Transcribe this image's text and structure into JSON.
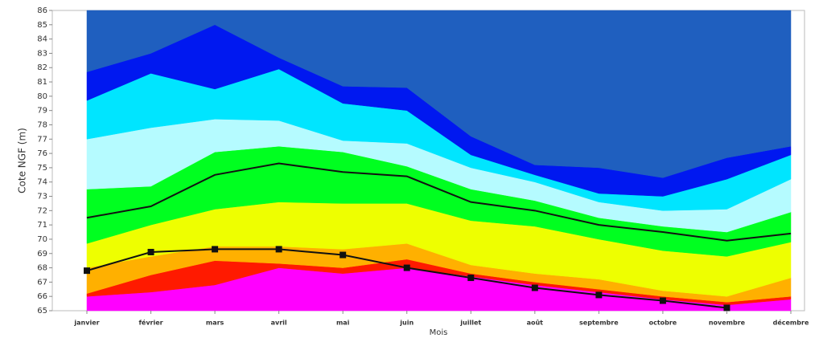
{
  "chart_data": {
    "type": "area",
    "y_label": "Cote NGF (m)",
    "x_label": "Mois",
    "categories": [
      "janvier",
      "février",
      "mars",
      "avril",
      "mai",
      "juin",
      "juillet",
      "août",
      "septembre",
      "octobre",
      "novembre",
      "décembre"
    ],
    "ylim": [
      65,
      86
    ],
    "yticks": [
      65,
      66,
      67,
      68,
      69,
      70,
      71,
      72,
      73,
      74,
      75,
      76,
      77,
      78,
      79,
      80,
      81,
      82,
      83,
      84,
      85,
      86
    ],
    "series": [
      {
        "kind": "band",
        "color": "#ff00ff",
        "values": [
          66.0,
          66.3,
          66.8,
          68.0,
          67.6,
          68.0,
          67.4,
          66.8,
          66.3,
          65.8,
          65.4,
          65.8
        ]
      },
      {
        "kind": "band",
        "color": "#ff1a00",
        "values": [
          66.2,
          67.5,
          68.5,
          68.3,
          68.0,
          68.6,
          67.6,
          67.0,
          66.5,
          66.0,
          65.6,
          66.0
        ]
      },
      {
        "kind": "band",
        "color": "#ffb000",
        "values": [
          68.0,
          68.8,
          69.5,
          69.5,
          69.3,
          69.7,
          68.2,
          67.6,
          67.2,
          66.4,
          66.0,
          67.3
        ]
      },
      {
        "kind": "band",
        "color": "#eeff00",
        "values": [
          69.7,
          71.0,
          72.1,
          72.6,
          72.5,
          72.5,
          71.3,
          70.9,
          70.0,
          69.2,
          68.8,
          69.8
        ]
      },
      {
        "kind": "band",
        "color": "#00ff20",
        "values": [
          73.5,
          73.7,
          76.1,
          76.5,
          76.1,
          75.1,
          73.5,
          72.7,
          71.5,
          70.9,
          70.5,
          71.9
        ]
      },
      {
        "kind": "band",
        "color": "#b5fbff",
        "values": [
          77.0,
          77.8,
          78.4,
          78.3,
          76.9,
          76.7,
          75.0,
          74.0,
          72.6,
          72.0,
          72.1,
          74.2
        ]
      },
      {
        "kind": "band",
        "color": "#00e5ff",
        "values": [
          79.7,
          81.6,
          80.5,
          81.9,
          79.5,
          79.0,
          75.9,
          74.5,
          73.2,
          73.0,
          74.2,
          75.9
        ]
      },
      {
        "kind": "band",
        "color": "#0018f0",
        "values": [
          81.7,
          83.0,
          85.0,
          82.7,
          80.7,
          80.6,
          77.2,
          75.2,
          75.0,
          74.3,
          75.7,
          76.5
        ]
      },
      {
        "kind": "band",
        "color": "#1f5fbf",
        "values": [
          86,
          86,
          86,
          86,
          86,
          86,
          86,
          86,
          86,
          86,
          86,
          86
        ]
      },
      {
        "kind": "line",
        "color": "#111111",
        "values": [
          71.5,
          72.3,
          74.5,
          75.3,
          74.7,
          74.4,
          72.6,
          72.0,
          71.0,
          70.5,
          69.9,
          70.4
        ]
      },
      {
        "kind": "line",
        "marker": "square",
        "color": "#111111",
        "values": [
          67.8,
          69.1,
          69.3,
          69.3,
          68.9,
          68.0,
          67.3,
          66.6,
          66.1,
          65.7,
          65.2,
          null
        ]
      }
    ]
  }
}
